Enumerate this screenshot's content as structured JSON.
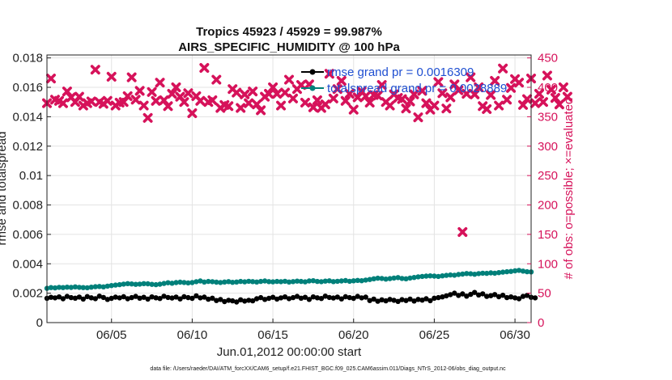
{
  "chart_data": {
    "type": "line",
    "title": "Tropics 45923 / 45929 = 99.987%",
    "subtitle": "AIRS_SPECIFIC_HUMIDITY @ 100 hPa",
    "xlabel": "Jun.01,2012 00:00:00 start",
    "ylabel": "rmse and totalspread",
    "ylabel_right": "# of obs: o=possible; ×=evaluated",
    "footer": "data file: /Users/raeder/DAI/ATM_forcXX/CAM6_setup/f.e21.FHIST_BGC.f09_025.CAM6assim.011/Diags_NTrS_2012-06/obs_diag_output.nc",
    "xlim": [
      1,
      31
    ],
    "ylim": [
      0,
      0.0182
    ],
    "ylim_right": [
      0,
      455
    ],
    "x_ticks": [
      {
        "value": 5,
        "label": "06/05"
      },
      {
        "value": 10,
        "label": "06/10"
      },
      {
        "value": 15,
        "label": "06/15"
      },
      {
        "value": 20,
        "label": "06/20"
      },
      {
        "value": 25,
        "label": "06/25"
      },
      {
        "value": 30,
        "label": "06/30"
      }
    ],
    "y_ticks": [
      {
        "value": 0,
        "label": "0"
      },
      {
        "value": 0.002,
        "label": "0.002"
      },
      {
        "value": 0.004,
        "label": "0.004"
      },
      {
        "value": 0.006,
        "label": "0.006"
      },
      {
        "value": 0.008,
        "label": "0.008"
      },
      {
        "value": 0.01,
        "label": "0.01"
      },
      {
        "value": 0.012,
        "label": "0.012"
      },
      {
        "value": 0.014,
        "label": "0.014"
      },
      {
        "value": 0.016,
        "label": "0.016"
      },
      {
        "value": 0.018,
        "label": "0.018"
      }
    ],
    "y_ticks_right": [
      {
        "value": 0,
        "label": "0"
      },
      {
        "value": 50,
        "label": "50"
      },
      {
        "value": 100,
        "label": "100"
      },
      {
        "value": 150,
        "label": "150"
      },
      {
        "value": 200,
        "label": "200"
      },
      {
        "value": 250,
        "label": "250"
      },
      {
        "value": 300,
        "label": "300"
      },
      {
        "value": 350,
        "label": "350"
      },
      {
        "value": 400,
        "label": "400"
      },
      {
        "value": 450,
        "label": "450"
      }
    ],
    "grid": true,
    "legend_position": "top-right",
    "legend": [
      {
        "label": "rmse grand pr = 0.0016309",
        "color": "#000000"
      },
      {
        "label": "totalspread grand pr = 0.0028889",
        "color": "#00807a"
      }
    ],
    "series": [
      {
        "name": "rmse",
        "axis": "left",
        "color": "#000000",
        "marker": "circle",
        "x_start": 1,
        "x_step": 0.25,
        "values": [
          0.00165,
          0.00172,
          0.00168,
          0.00175,
          0.00162,
          0.00178,
          0.0017,
          0.00166,
          0.00174,
          0.0016,
          0.00177,
          0.00169,
          0.00163,
          0.0018,
          0.00171,
          0.00158,
          0.00165,
          0.00173,
          0.00168,
          0.00176,
          0.00162,
          0.0017,
          0.00178,
          0.00166,
          0.00172,
          0.0016,
          0.00175,
          0.00169,
          0.00164,
          0.00179,
          0.00171,
          0.00167,
          0.00174,
          0.00161,
          0.00176,
          0.0017,
          0.00165,
          0.00182,
          0.00168,
          0.00173,
          0.00159,
          0.00166,
          0.0015,
          0.00157,
          0.00143,
          0.00152,
          0.00148,
          0.0014,
          0.00155,
          0.00146,
          0.00152,
          0.00148,
          0.00162,
          0.0017,
          0.00158,
          0.00165,
          0.00172,
          0.0016,
          0.00168,
          0.00175,
          0.00163,
          0.0017,
          0.00178,
          0.00166,
          0.00172,
          0.00158,
          0.00175,
          0.00169,
          0.00164,
          0.0018,
          0.00171,
          0.00167,
          0.00174,
          0.00161,
          0.00176,
          0.0017,
          0.00165,
          0.00178,
          0.00168,
          0.00173,
          0.0015,
          0.0016,
          0.00145,
          0.00155,
          0.00148,
          0.00158,
          0.00152,
          0.00144,
          0.00156,
          0.0015,
          0.0016,
          0.00147,
          0.00158,
          0.00153,
          0.00162,
          0.00149,
          0.00166,
          0.0017,
          0.00175,
          0.00182,
          0.0019,
          0.002,
          0.00185,
          0.00195,
          0.0018,
          0.00192,
          0.00205,
          0.00188,
          0.00196,
          0.00178,
          0.00183,
          0.00191,
          0.00176,
          0.00186,
          0.0017,
          0.00175,
          0.00168,
          0.00162,
          0.00178,
          0.00185,
          0.00172,
          0.00168
        ]
      },
      {
        "name": "totalspread",
        "axis": "left",
        "color": "#00807a",
        "marker": "circle",
        "x_start": 1,
        "x_step": 0.25,
        "values": [
          0.00233,
          0.00238,
          0.00236,
          0.0024,
          0.00238,
          0.00241,
          0.00239,
          0.00243,
          0.0024,
          0.00238,
          0.00237,
          0.00241,
          0.00244,
          0.00246,
          0.00243,
          0.00248,
          0.00252,
          0.00255,
          0.00258,
          0.00262,
          0.00265,
          0.00263,
          0.0026,
          0.00262,
          0.00265,
          0.00264,
          0.0026,
          0.00258,
          0.00261,
          0.00266,
          0.00271,
          0.00268,
          0.00272,
          0.00275,
          0.00273,
          0.0027,
          0.00272,
          0.00278,
          0.00283,
          0.00276,
          0.0028,
          0.00278,
          0.00275,
          0.00273,
          0.00276,
          0.00279,
          0.00274,
          0.00276,
          0.0028,
          0.00277,
          0.00281,
          0.00279,
          0.00276,
          0.0028,
          0.00283,
          0.00279,
          0.00277,
          0.0028,
          0.00278,
          0.00281,
          0.00276,
          0.00279,
          0.00282,
          0.0028,
          0.00277,
          0.00283,
          0.00285,
          0.0028,
          0.00278,
          0.00282,
          0.00284,
          0.00279,
          0.00281,
          0.00283,
          0.00286,
          0.00281,
          0.00284,
          0.00287,
          0.00285,
          0.00289,
          0.00293,
          0.00298,
          0.00302,
          0.003,
          0.00296,
          0.00299,
          0.00303,
          0.00306,
          0.003,
          0.00298,
          0.00303,
          0.00307,
          0.00311,
          0.00314,
          0.00316,
          0.00318,
          0.00316,
          0.00314,
          0.00318,
          0.00321,
          0.00324,
          0.00322,
          0.00327,
          0.0033,
          0.00334,
          0.00332,
          0.00329,
          0.00333,
          0.00336,
          0.00335,
          0.00338,
          0.00336,
          0.0034,
          0.00343,
          0.00346,
          0.00348,
          0.00352,
          0.00355,
          0.0035,
          0.00346,
          0.00345
        ]
      },
      {
        "name": "obs count",
        "axis": "right",
        "color": "#d6125a",
        "marker": "cross",
        "x_start": 1,
        "x_step": 0.25,
        "values": [
          373,
          415,
          379,
          377,
          373,
          393,
          383,
          375,
          384,
          369,
          373,
          376,
          430,
          375,
          372,
          377,
          418,
          369,
          374,
          375,
          385,
          417,
          379,
          394,
          369,
          348,
          392,
          377,
          408,
          378,
          368,
          389,
          400,
          384,
          375,
          390,
          356,
          385,
          377,
          433,
          375,
          378,
          413,
          365,
          370,
          368,
          397,
          391,
          365,
          388,
          373,
          393,
          371,
          361,
          384,
          389,
          400,
          389,
          369,
          391,
          413,
          381,
          397,
          404,
          374,
          405,
          366,
          378,
          365,
          371,
          423,
          381,
          397,
          411,
          377,
          389,
          362,
          383,
          393,
          385,
          374,
          387,
          386,
          404,
          375,
          369,
          388,
          382,
          380,
          364,
          376,
          388,
          349,
          394,
          373,
          362,
          369,
          409,
          390,
          364,
          383,
          405,
          395,
          154,
          389,
          417,
          388,
          400,
          368,
          363,
          387,
          411,
          369,
          432,
          379,
          399,
          414,
          408,
          370,
          380,
          415,
          373,
          389,
          375,
          420,
          396,
          382,
          371,
          400,
          384
        ]
      }
    ]
  }
}
